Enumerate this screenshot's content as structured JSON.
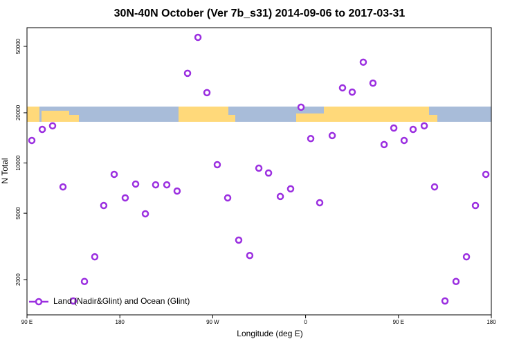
{
  "chart_data": {
    "type": "scatter",
    "title": "30N-40N October (Ver 7b_s31)   2014-09-06 to 2017-03-31",
    "x_label": "Longitude (deg E)",
    "y_label": "N Total",
    "y_scale": "log",
    "legend_position": "bottom-left",
    "xlim": [
      90,
      540
    ],
    "ylim": [
      1230,
      64700
    ],
    "xticks": [
      {
        "value": 90,
        "label": "90 E"
      },
      180,
      {
        "value": 270,
        "label": "90 W"
      },
      {
        "value": 360,
        "label": "0"
      },
      {
        "value": 450,
        "label": "90 E"
      },
      {
        "value": 540,
        "label": "180"
      }
    ],
    "yticks": [
      2000,
      5000,
      10000,
      20000,
      50000
    ],
    "series": [
      {
        "name": "Land (Nadir&Glint) and Ocean (Glint)",
        "color": "#9b2fe0",
        "x": [
          94.7,
          104.8,
          114.8,
          124.9,
          134.9,
          145.7,
          155.7,
          164.4,
          174.5,
          185.2,
          195.3,
          204.7,
          214.7,
          225.5,
          235.5,
          245.6,
          255.7,
          264.4,
          274.4,
          284.5,
          295.2,
          305.9,
          314.7,
          324.1,
          335.5,
          345.5,
          355.6,
          365.0,
          373.7,
          385.8,
          395.8,
          405.2,
          415.9,
          425.3,
          436.1,
          445.5,
          455.5,
          464.2,
          475.0,
          485.0,
          495.1,
          505.8,
          515.9,
          524.6,
          534.7
        ],
        "values": [
          13650,
          15900,
          16700,
          7190,
          1490,
          1950,
          2740,
          5560,
          8550,
          6180,
          7480,
          4960,
          7400,
          7400,
          6790,
          34500,
          56600,
          26400,
          9770,
          6180,
          3450,
          2790,
          9310,
          8710,
          6300,
          7000,
          21600,
          14000,
          5780,
          14600,
          28200,
          26600,
          40200,
          30100,
          12900,
          16200,
          13650,
          15900,
          16700,
          7190,
          1490,
          1950,
          2740,
          5560,
          8550
        ]
      }
    ]
  }
}
